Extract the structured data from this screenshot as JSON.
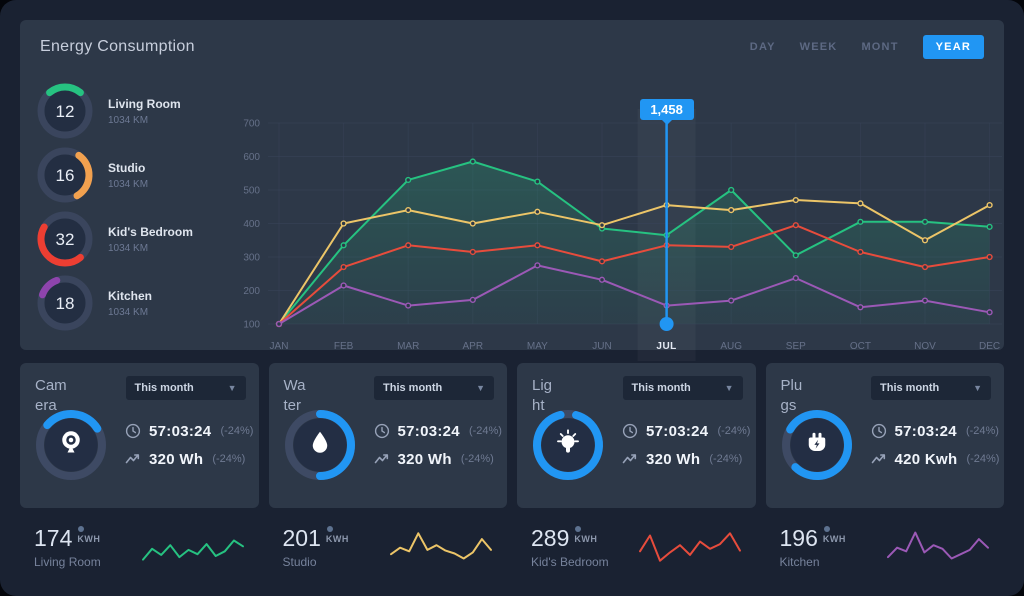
{
  "colors": {
    "accent": "#2196f3",
    "panel": "#2d3848",
    "page": "#1a2232",
    "grid": "#3b465a",
    "green": "#26c281",
    "yellow": "#ecc568",
    "red": "#e74c3c",
    "purple": "#9b59b6"
  },
  "window": {
    "title": "Energy Consumption"
  },
  "header": {
    "tabs": [
      {
        "label": "DAY",
        "active": false
      },
      {
        "label": "WEEK",
        "active": false
      },
      {
        "label": "MONT",
        "active": false
      },
      {
        "label": "YEAR",
        "active": true
      }
    ]
  },
  "gauges": [
    {
      "value": "12",
      "label": "Living Room",
      "sub": "1034 KM",
      "color": "#26c281",
      "start": -40,
      "sweep": 80
    },
    {
      "value": "16",
      "label": "Studio",
      "sub": "1034 KM",
      "color": "#f2a14f",
      "start": 35,
      "sweep": 115
    },
    {
      "value": "32",
      "label": "Kid's Bedroom",
      "sub": "1034 KM",
      "color": "#ed3e32",
      "start": 140,
      "sweep": 160
    },
    {
      "value": "18",
      "label": "Kitchen",
      "sub": "1034 KM",
      "color": "#8e44ad",
      "start": -70,
      "sweep": 50
    }
  ],
  "tooltip": {
    "value": "1,458",
    "month": "JUL"
  },
  "chart_data": [
    {
      "type": "line",
      "title": "Energy Consumption - YEAR view",
      "x": [
        "JAN",
        "FEB",
        "MAR",
        "APR",
        "MAY",
        "JUN",
        "JUL",
        "AUG",
        "SEP",
        "OCT",
        "NOV",
        "DEC"
      ],
      "ylim": [
        100,
        700
      ],
      "yticks": [
        700,
        600,
        500,
        400,
        300,
        200,
        100
      ],
      "grid": true,
      "selected_x": "JUL",
      "tooltip_value": "1,458",
      "marker": {
        "x": "JUL",
        "y": 100,
        "color": "#2196f3"
      },
      "series": [
        {
          "name": "Living Room",
          "color": "#26c281",
          "fill": true,
          "values": [
            100,
            335,
            530,
            585,
            525,
            385,
            365,
            500,
            305,
            405,
            405,
            390
          ]
        },
        {
          "name": "Studio",
          "color": "#ecc568",
          "values": [
            100,
            400,
            440,
            400,
            435,
            395,
            455,
            440,
            470,
            460,
            350,
            455
          ]
        },
        {
          "name": "Kid's Bedroom",
          "color": "#e74c3c",
          "values": [
            100,
            270,
            335,
            315,
            335,
            287,
            335,
            330,
            395,
            315,
            270,
            300
          ]
        },
        {
          "name": "Kitchen",
          "color": "#9b59b6",
          "values": [
            100,
            215,
            155,
            172,
            275,
            232,
            155,
            170,
            237,
            150,
            170,
            135
          ]
        }
      ]
    },
    {
      "type": "line",
      "title": "Living Room sparkline",
      "color": "#26c281",
      "values": [
        15,
        45,
        28,
        55,
        22,
        42,
        30,
        58,
        25,
        38,
        68,
        52
      ]
    },
    {
      "type": "line",
      "title": "Studio sparkline",
      "color": "#ecc568",
      "values": [
        30,
        48,
        38,
        88,
        42,
        55,
        40,
        32,
        18,
        35,
        72,
        42
      ]
    },
    {
      "type": "line",
      "title": "Kid's Bedroom sparkline",
      "color": "#e74c3c",
      "values": [
        38,
        82,
        12,
        35,
        55,
        28,
        65,
        45,
        58,
        88,
        40
      ]
    },
    {
      "type": "line",
      "title": "Kitchen sparkline",
      "color": "#9b59b6",
      "values": [
        22,
        48,
        38,
        90,
        35,
        55,
        45,
        18,
        30,
        42,
        72,
        48
      ]
    }
  ],
  "cards": [
    {
      "title": "Camera",
      "title_lines": "Cam\nera",
      "dropdown": "This month",
      "icon": "webcam-icon",
      "progress": 0.3,
      "start": -50,
      "stats": [
        {
          "icon": "clock-icon",
          "value": "57:03:24",
          "delta": "(-24%)"
        },
        {
          "icon": "trend-icon",
          "value": "320 Wh",
          "delta": "(-24%)"
        }
      ]
    },
    {
      "title": "Water",
      "title_lines": "Wa\nter",
      "dropdown": "This month",
      "icon": "drop-icon",
      "progress": 0.5,
      "start": 0,
      "stats": [
        {
          "icon": "clock-icon",
          "value": "57:03:24",
          "delta": "(-24%)"
        },
        {
          "icon": "trend-icon",
          "value": "320 Wh",
          "delta": "(-24%)"
        }
      ]
    },
    {
      "title": "Light",
      "title_lines": "Lig\nht",
      "dropdown": "This month",
      "icon": "bulb-icon",
      "progress": 0.92,
      "start": 15,
      "stats": [
        {
          "icon": "clock-icon",
          "value": "57:03:24",
          "delta": "(-24%)"
        },
        {
          "icon": "trend-icon",
          "value": "320 Wh",
          "delta": "(-24%)"
        }
      ]
    },
    {
      "title": "Plugs",
      "title_lines": "Plu\ngs",
      "dropdown": "This month",
      "icon": "plug-icon",
      "progress": 0.79,
      "start": -60,
      "stats": [
        {
          "icon": "clock-icon",
          "value": "57:03:24",
          "delta": "(-24%)"
        },
        {
          "icon": "trend-icon",
          "value": "420 Kwh",
          "delta": "(-24%)"
        }
      ]
    }
  ],
  "footer": [
    {
      "value": "174",
      "unit": "KWH",
      "label": "Living Room",
      "color": "#26c281",
      "spark_index": 1
    },
    {
      "value": "201",
      "unit": "KWH",
      "label": "Studio",
      "color": "#ecc568",
      "spark_index": 2
    },
    {
      "value": "289",
      "unit": "KWH",
      "label": "Kid's Bedroom",
      "color": "#e74c3c",
      "spark_index": 3
    },
    {
      "value": "196",
      "unit": "KWH",
      "label": "Kitchen",
      "color": "#9b59b6",
      "spark_index": 4
    }
  ]
}
